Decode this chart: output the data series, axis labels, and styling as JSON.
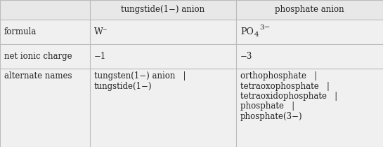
{
  "col_headers": [
    "tungstide(1−) anion",
    "phosphate anion"
  ],
  "row_labels": [
    "formula",
    "net ionic charge",
    "alternate names"
  ],
  "line_color": "#bbbbbb",
  "bg_color": "#f0f0f0",
  "cell_bg": "#ffffff",
  "text_color": "#222222",
  "font_size": 8.5,
  "formula_col1": "W⁻",
  "charge_col1": "−1",
  "charge_col2": "−3",
  "alt_col1_line1": "tungsten(1−) anion   |",
  "alt_col1_line2": "tungstide(1−)",
  "alt_col2_line1": "orthophosphate   |",
  "alt_col2_line2": "tetraoxophosphate   |",
  "alt_col2_line3": "tetraoxidophosphate   |",
  "alt_col2_line4": "phosphate   |",
  "alt_col2_line5": "phosphate(3−)"
}
